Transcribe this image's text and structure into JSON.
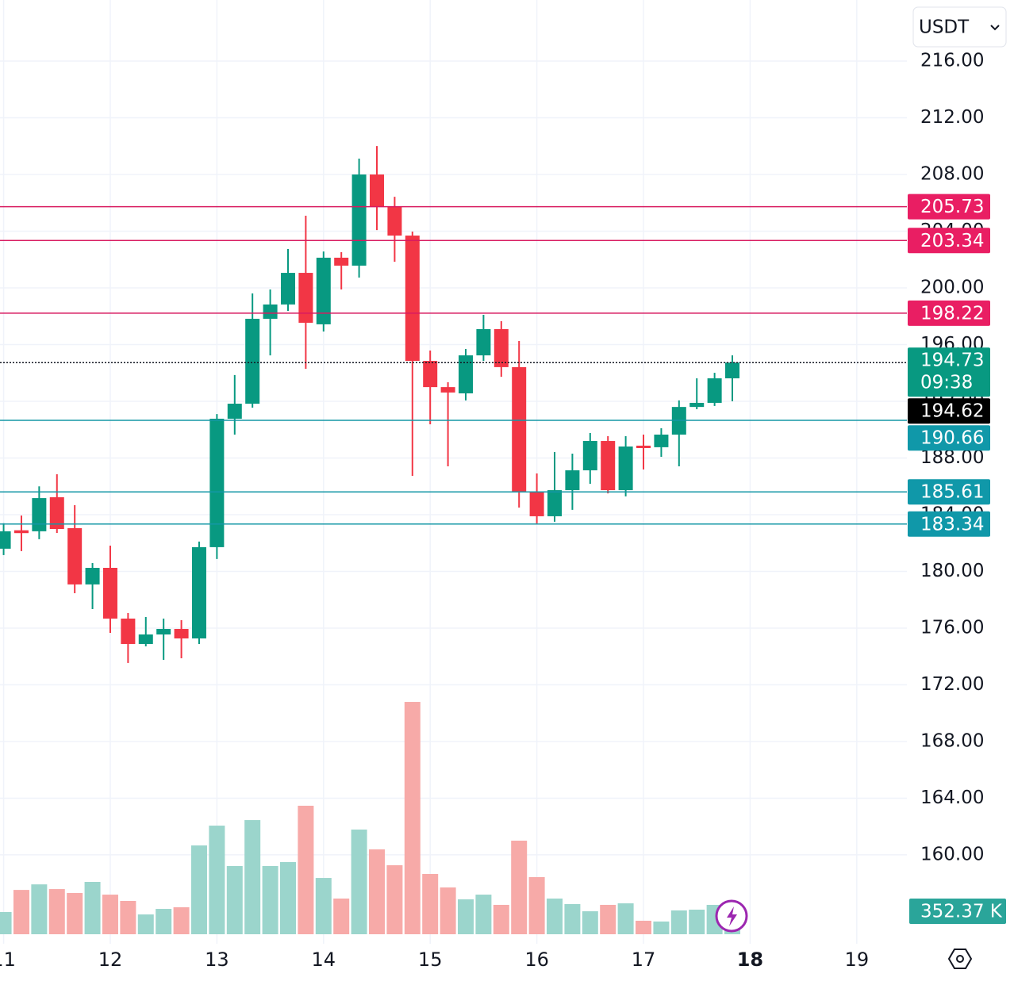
{
  "chart_data": {
    "type": "candlestick",
    "currency": "USDT",
    "x": [
      11,
      11.1667,
      11.3333,
      11.5,
      11.6667,
      11.8333,
      12,
      12.1667,
      12.3333,
      12.5,
      12.6667,
      12.8333,
      13,
      13.1667,
      13.3333,
      13.5,
      13.6667,
      13.8333,
      14,
      14.1667,
      14.3333,
      14.5,
      14.6667,
      14.8333,
      15,
      15.1667,
      15.3333,
      15.5,
      15.6667,
      15.8333,
      16,
      16.1667,
      16.3333,
      16.5,
      16.6667,
      16.8333,
      17,
      17.1667,
      17.3333,
      17.5,
      17.6667,
      17.8333
    ],
    "open": [
      181.6,
      182.9,
      182.83,
      185.23,
      183.05,
      179.08,
      180.25,
      176.67,
      174.88,
      175.55,
      175.94,
      175.27,
      181.71,
      190.77,
      191.83,
      197.82,
      198.83,
      201.06,
      197.43,
      202.13,
      201.57,
      208.0,
      205.76,
      203.69,
      194.85,
      193.0,
      192.56,
      195.24,
      197.09,
      194.41,
      185.57,
      183.89,
      185.73,
      187.13,
      189.2,
      185.73,
      188.87,
      188.76,
      189.65,
      191.6,
      191.89,
      193.62
    ],
    "high": [
      183.4,
      183.94,
      186.0,
      186.85,
      184.67,
      180.59,
      181.82,
      177.06,
      176.78,
      176.67,
      176.56,
      182.1,
      191.1,
      193.85,
      199.61,
      199.89,
      202.74,
      205.09,
      202.57,
      202.52,
      209.12,
      210.01,
      206.43,
      203.97,
      195.58,
      193.34,
      195.69,
      198.1,
      197.65,
      196.25,
      186.91,
      188.42,
      188.31,
      189.76,
      189.54,
      189.54,
      189.65,
      190.1,
      192.06,
      193.62,
      194.01,
      195.24
    ],
    "low": [
      181.15,
      181.43,
      182.27,
      182.71,
      178.46,
      177.34,
      175.66,
      173.54,
      174.71,
      173.76,
      173.87,
      174.88,
      180.87,
      189.65,
      191.55,
      195.24,
      198.38,
      194.29,
      196.92,
      199.89,
      200.73,
      204.08,
      201.85,
      186.74,
      190.38,
      187.41,
      192.06,
      194.85,
      193.73,
      184.5,
      183.39,
      183.5,
      184.34,
      186.18,
      185.5,
      185.29,
      187.19,
      188.08,
      187.41,
      191.44,
      191.67,
      192.0
    ],
    "close": [
      182.83,
      182.7,
      185.17,
      182.99,
      179.08,
      180.25,
      176.67,
      174.88,
      175.55,
      175.94,
      175.27,
      181.71,
      190.77,
      191.83,
      197.82,
      198.83,
      201.06,
      197.54,
      202.13,
      201.57,
      208.0,
      205.76,
      203.69,
      194.85,
      193.0,
      192.62,
      195.24,
      197.09,
      194.41,
      185.57,
      183.89,
      185.73,
      187.13,
      189.2,
      185.73,
      188.81,
      188.7,
      189.65,
      191.6,
      191.89,
      193.62,
      194.73
    ],
    "volume": [
      260,
      519,
      584,
      529,
      483,
      613,
      464,
      390,
      232,
      297,
      316,
      1040,
      1272,
      799,
      1337,
      799,
      845,
      1505,
      659,
      418,
      1226,
      994,
      808,
      2721,
      706,
      548,
      409,
      464,
      344,
      1096,
      669,
      418,
      353,
      269,
      344,
      362,
      158,
      149,
      279,
      288,
      344,
      352.37
    ],
    "volume_value_label": "352.37 K",
    "volume_lim": [
      0,
      3000
    ],
    "up_color": "#089981",
    "down_color": "#f23645",
    "volume_up_color": "#9bd5cc",
    "volume_down_color": "#f7aaa8",
    "xlim": [
      10.966,
      19.47
    ],
    "xticks": [
      11,
      12,
      13,
      14,
      15,
      16,
      17,
      18,
      19
    ],
    "highlight_xtick": 18,
    "ylim": [
      153.73,
      220.31
    ],
    "yticks": [
      {
        "value": 216,
        "label": "216.00"
      },
      {
        "value": 212,
        "label": "212.00"
      },
      {
        "value": 208,
        "label": "208.00"
      },
      {
        "value": 204,
        "label": "204.00"
      },
      {
        "value": 200,
        "label": "200.00"
      },
      {
        "value": 196,
        "label": "196.00"
      },
      {
        "value": 192,
        "label": "192.00"
      },
      {
        "value": 188,
        "label": "188.00"
      },
      {
        "value": 184,
        "label": "184.00"
      },
      {
        "value": 180,
        "label": "180.00"
      },
      {
        "value": 176,
        "label": "176.00"
      },
      {
        "value": 172,
        "label": "172.00"
      },
      {
        "value": 168,
        "label": "168.00"
      },
      {
        "value": 164,
        "label": "164.00"
      },
      {
        "value": 160,
        "label": "160.00"
      }
    ],
    "grid": true,
    "price_lines": [
      {
        "value": 205.73,
        "color": "#d81b60"
      },
      {
        "value": 203.34,
        "color": "#d81b60"
      },
      {
        "value": 198.22,
        "color": "#d81b60"
      },
      {
        "value": 190.66,
        "color": "#1497a6"
      },
      {
        "value": 185.61,
        "color": "#1497a6"
      },
      {
        "value": 183.34,
        "color": "#1497a6"
      }
    ],
    "current_price": 194.73,
    "countdown": "09:38",
    "marker_price": 194.62
  }
}
